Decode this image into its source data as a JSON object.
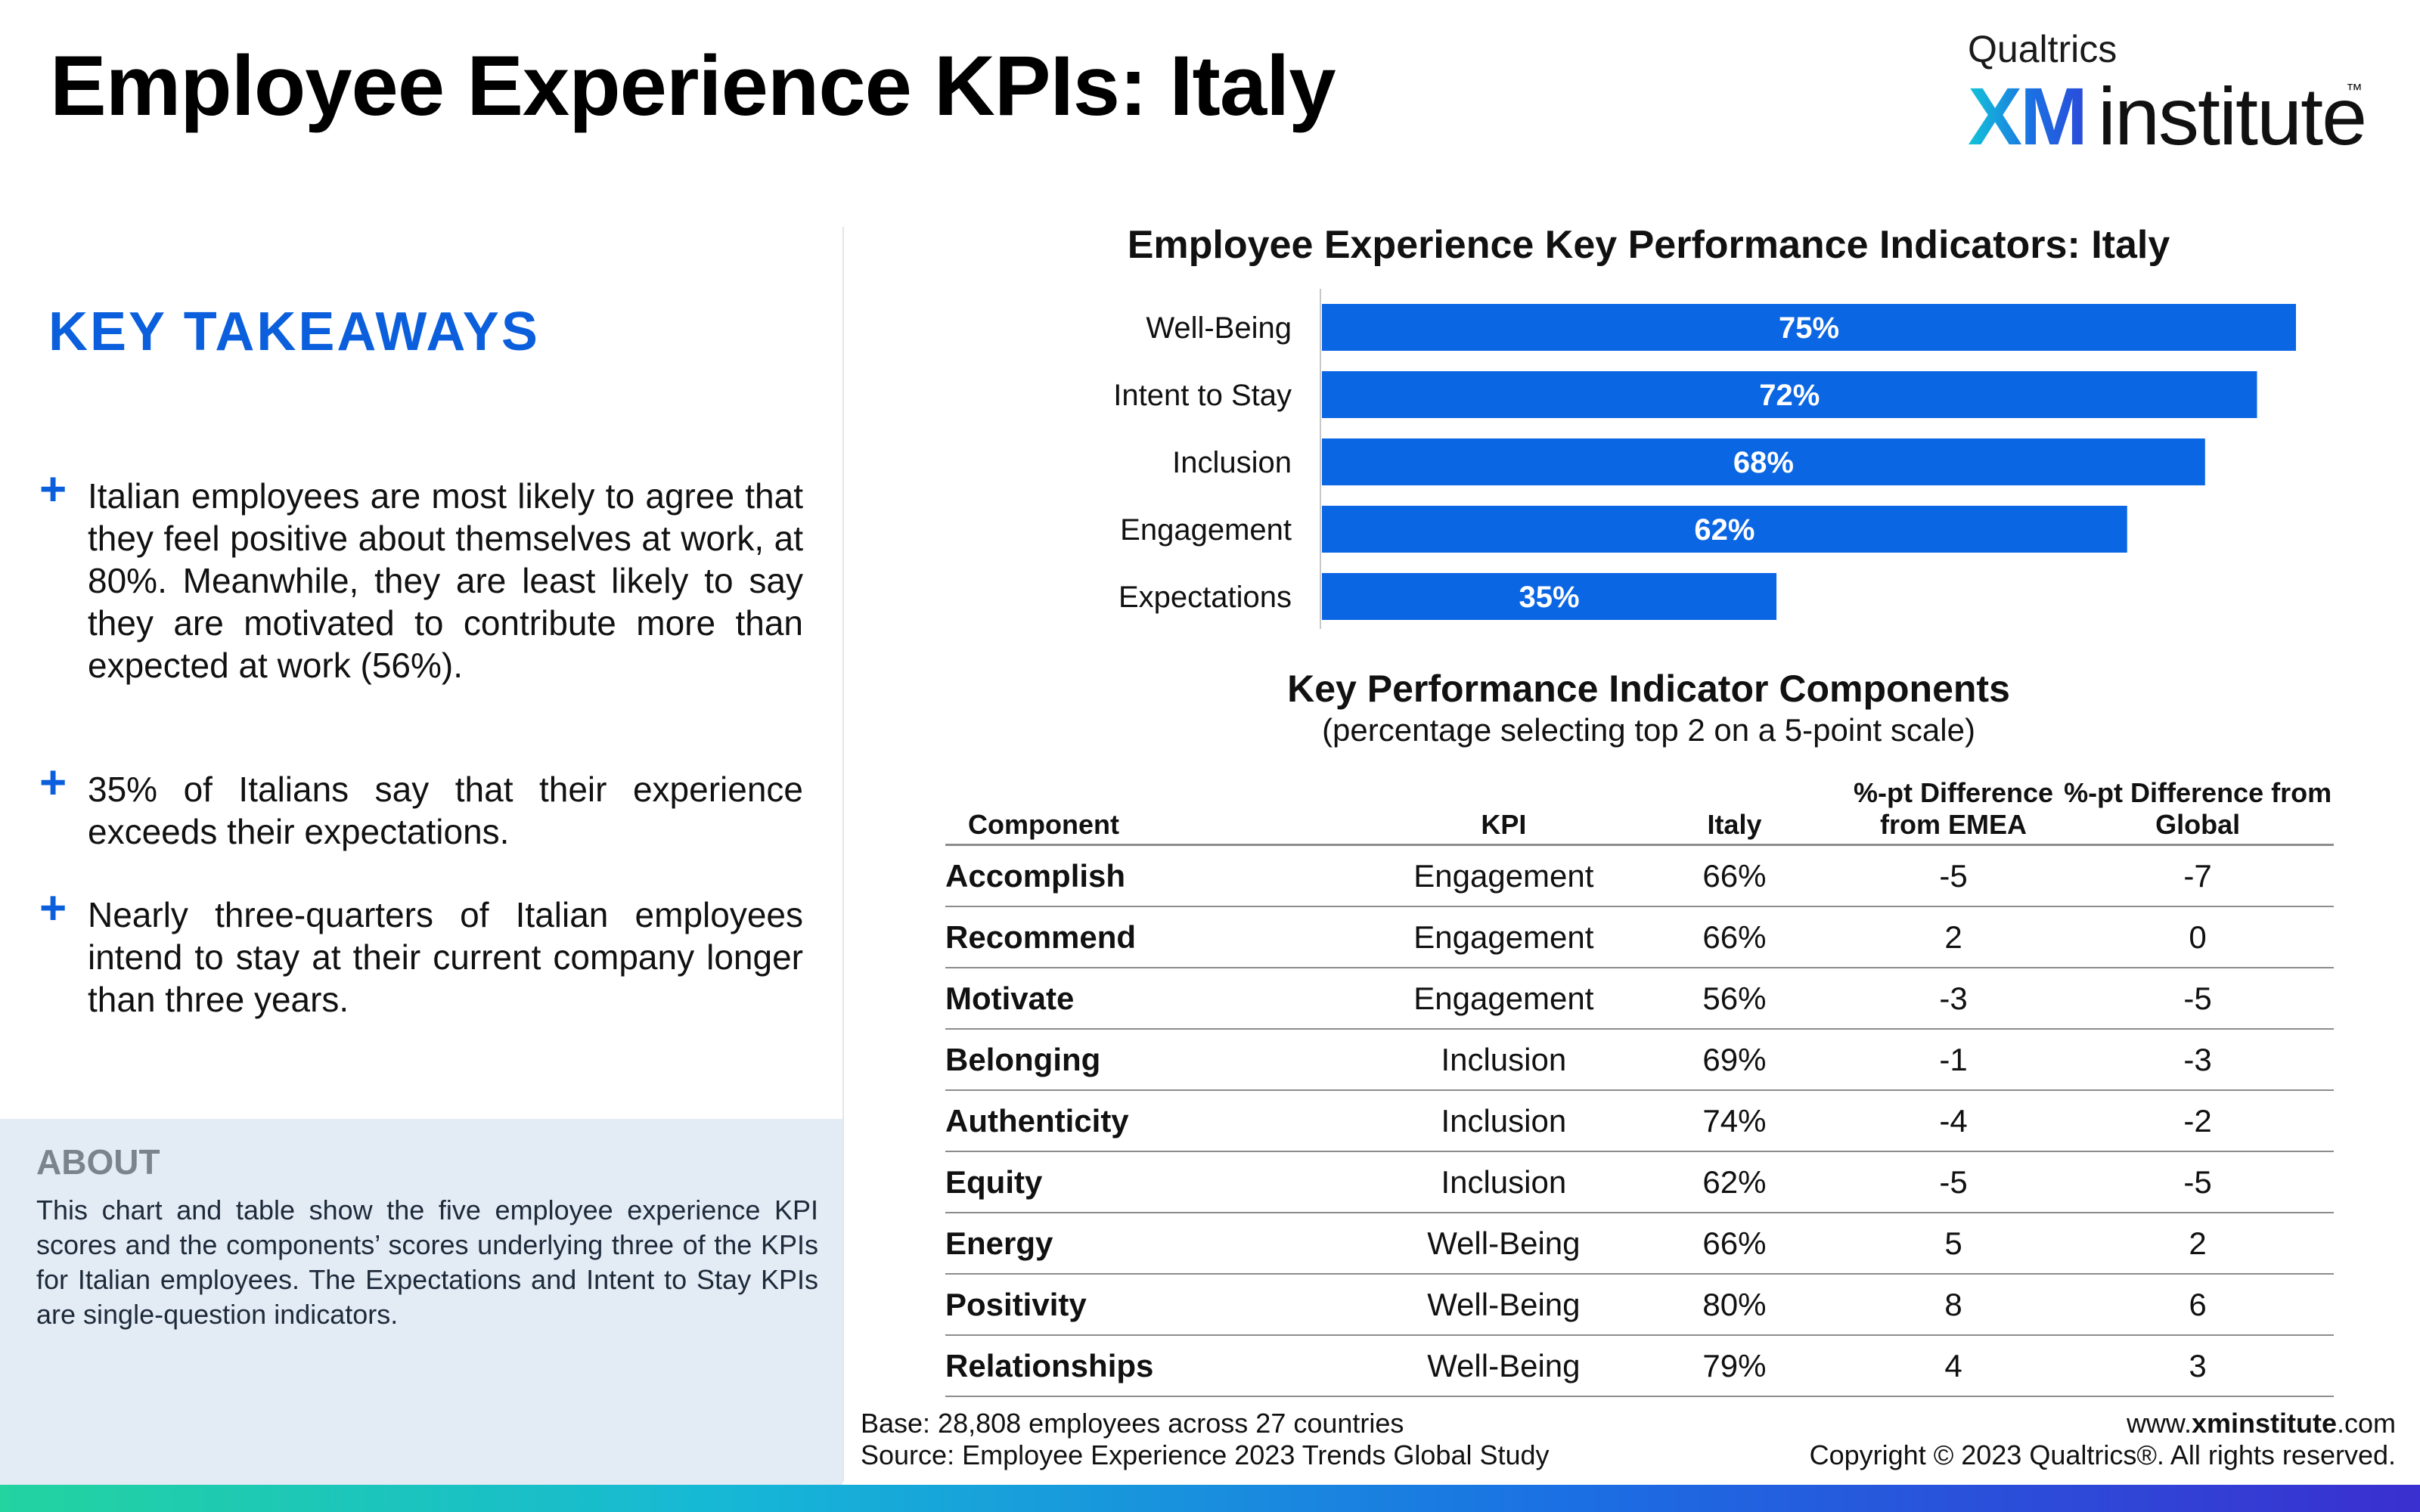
{
  "title": "Employee Experience KPIs: Italy",
  "logo": {
    "brand": "Qualtrics",
    "xm": "XM",
    "institute": "institute",
    "tm": "™"
  },
  "takeaways": {
    "heading": "KEY TAKEAWAYS",
    "bullet_symbol": "+",
    "items": [
      "Italian employees are most likely to agree that they feel positive about themselves at work, at 80%. Meanwhile, they are least likely to say they are motivated to contribute more than expected at work (56%).",
      "35% of Italians say that their experience exceeds their expectations.",
      "Nearly three-quarters of Italian employees intend to stay at their current company longer than three years."
    ]
  },
  "about": {
    "heading": "ABOUT",
    "body": "This chart and table show the five employee experience KPI scores and the components’ scores underlying three of the KPIs for Italian employees. The Expectations and Intent to Stay KPIs are single-question indicators."
  },
  "chart_data": [
    {
      "type": "bar",
      "orientation": "horizontal",
      "title": "Employee Experience Key Performance Indicators: Italy",
      "categories": [
        "Well-Being",
        "Intent to Stay",
        "Inclusion",
        "Engagement",
        "Expectations"
      ],
      "values": [
        75,
        72,
        68,
        62,
        35
      ],
      "value_labels": [
        "75%",
        "72%",
        "68%",
        "62%",
        "35%"
      ],
      "xlim": [
        0,
        75
      ],
      "grid": false,
      "legend": "none",
      "bar_color": "#0b66e4",
      "xlabel": "",
      "ylabel": ""
    },
    {
      "type": "table",
      "title": "Key Performance Indicator Components",
      "subtitle": "(percentage selecting top 2 on a 5-point scale)",
      "columns": [
        "Component",
        "KPI",
        "Italy",
        "%-pt Difference from EMEA",
        "%-pt Difference from Global"
      ],
      "rows": [
        [
          "Accomplish",
          "Engagement",
          "66%",
          "-5",
          "-7"
        ],
        [
          "Recommend",
          "Engagement",
          "66%",
          "2",
          "0"
        ],
        [
          "Motivate",
          "Engagement",
          "56%",
          "-3",
          "-5"
        ],
        [
          "Belonging",
          "Inclusion",
          "69%",
          "-1",
          "-3"
        ],
        [
          "Authenticity",
          "Inclusion",
          "74%",
          "-4",
          "-2"
        ],
        [
          "Equity",
          "Inclusion",
          "62%",
          "-5",
          "-5"
        ],
        [
          "Energy",
          "Well-Being",
          "66%",
          "5",
          "2"
        ],
        [
          "Positivity",
          "Well-Being",
          "80%",
          "8",
          "6"
        ],
        [
          "Relationships",
          "Well-Being",
          "79%",
          "4",
          "3"
        ]
      ]
    }
  ],
  "footer": {
    "base": "Base: 28,808 employees across 27 countries",
    "source": "Source: Employee Experience 2023 Trends Global Study",
    "url_prefix": "www.",
    "url_bold": "xminstitute",
    "url_suffix": ".com",
    "copyright": "Copyright © 2023 Qualtrics®. All rights reserved."
  }
}
